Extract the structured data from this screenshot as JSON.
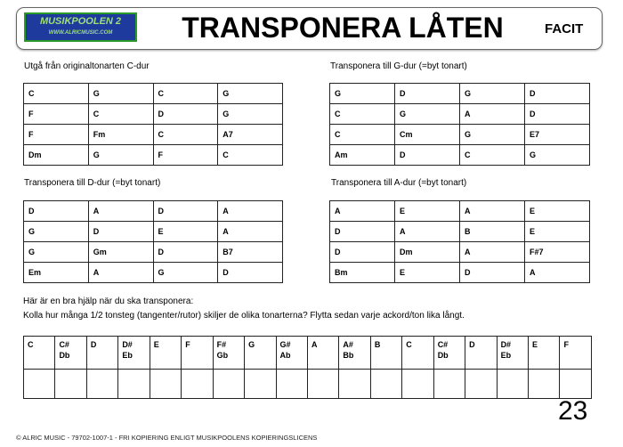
{
  "header": {
    "logo_line1": "MUSIKPOOLEN 2",
    "logo_line2": "WWW.ALRICMUSIC.COM",
    "title": "TRANSPONERA LÅTEN",
    "facit": "FACIT"
  },
  "tables": [
    {
      "label": "Utgå från originaltonarten C-dur",
      "rows": [
        [
          "C",
          "G",
          "C",
          "G"
        ],
        [
          "F",
          "C",
          "D",
          "G"
        ],
        [
          "F",
          "Fm",
          "C",
          "A7"
        ],
        [
          "Dm",
          "G",
          "F",
          "C"
        ]
      ]
    },
    {
      "label": "Transponera till G-dur (=byt tonart)",
      "rows": [
        [
          "G",
          "D",
          "G",
          "D"
        ],
        [
          "C",
          "G",
          "A",
          "D"
        ],
        [
          "C",
          "Cm",
          "G",
          "E7"
        ],
        [
          "Am",
          "D",
          "C",
          "G"
        ]
      ]
    },
    {
      "label": "Transponera till D-dur (=byt tonart)",
      "rows": [
        [
          "D",
          "A",
          "D",
          "A"
        ],
        [
          "G",
          "D",
          "E",
          "A"
        ],
        [
          "G",
          "Gm",
          "D",
          "B7"
        ],
        [
          "Em",
          "A",
          "G",
          "D"
        ]
      ]
    },
    {
      "label": "Transponera till A-dur (=byt tonart)",
      "rows": [
        [
          "A",
          "E",
          "A",
          "E"
        ],
        [
          "D",
          "A",
          "B",
          "E"
        ],
        [
          "D",
          "Dm",
          "A",
          "F#7"
        ],
        [
          "Bm",
          "E",
          "D",
          "A"
        ]
      ]
    }
  ],
  "help": {
    "line1": "Här är en bra hjälp när du ska transponera:",
    "line2": "Kolla hur många 1/2 tonsteg (tangenter/rutor) skiljer de olika tonarterna? Flytta sedan varje ackord/ton lika långt."
  },
  "notes": [
    [
      "C",
      ""
    ],
    [
      "C#",
      "Db"
    ],
    [
      "D",
      ""
    ],
    [
      "D#",
      "Eb"
    ],
    [
      "E",
      ""
    ],
    [
      "F",
      ""
    ],
    [
      "F#",
      "Gb"
    ],
    [
      "G",
      ""
    ],
    [
      "G#",
      "Ab"
    ],
    [
      "A",
      ""
    ],
    [
      "A#",
      "Bb"
    ],
    [
      "B",
      ""
    ],
    [
      "C",
      ""
    ],
    [
      "C#",
      "Db"
    ],
    [
      "D",
      ""
    ],
    [
      "D#",
      "Eb"
    ],
    [
      "E",
      ""
    ],
    [
      "F",
      ""
    ]
  ],
  "page_number": "23",
  "footer": "© ALRIC MUSIC  -  79702-1007-1  -  FRI KOPIERING ENLIGT MUSIKPOOLENS KOPIERINGSLICENS"
}
